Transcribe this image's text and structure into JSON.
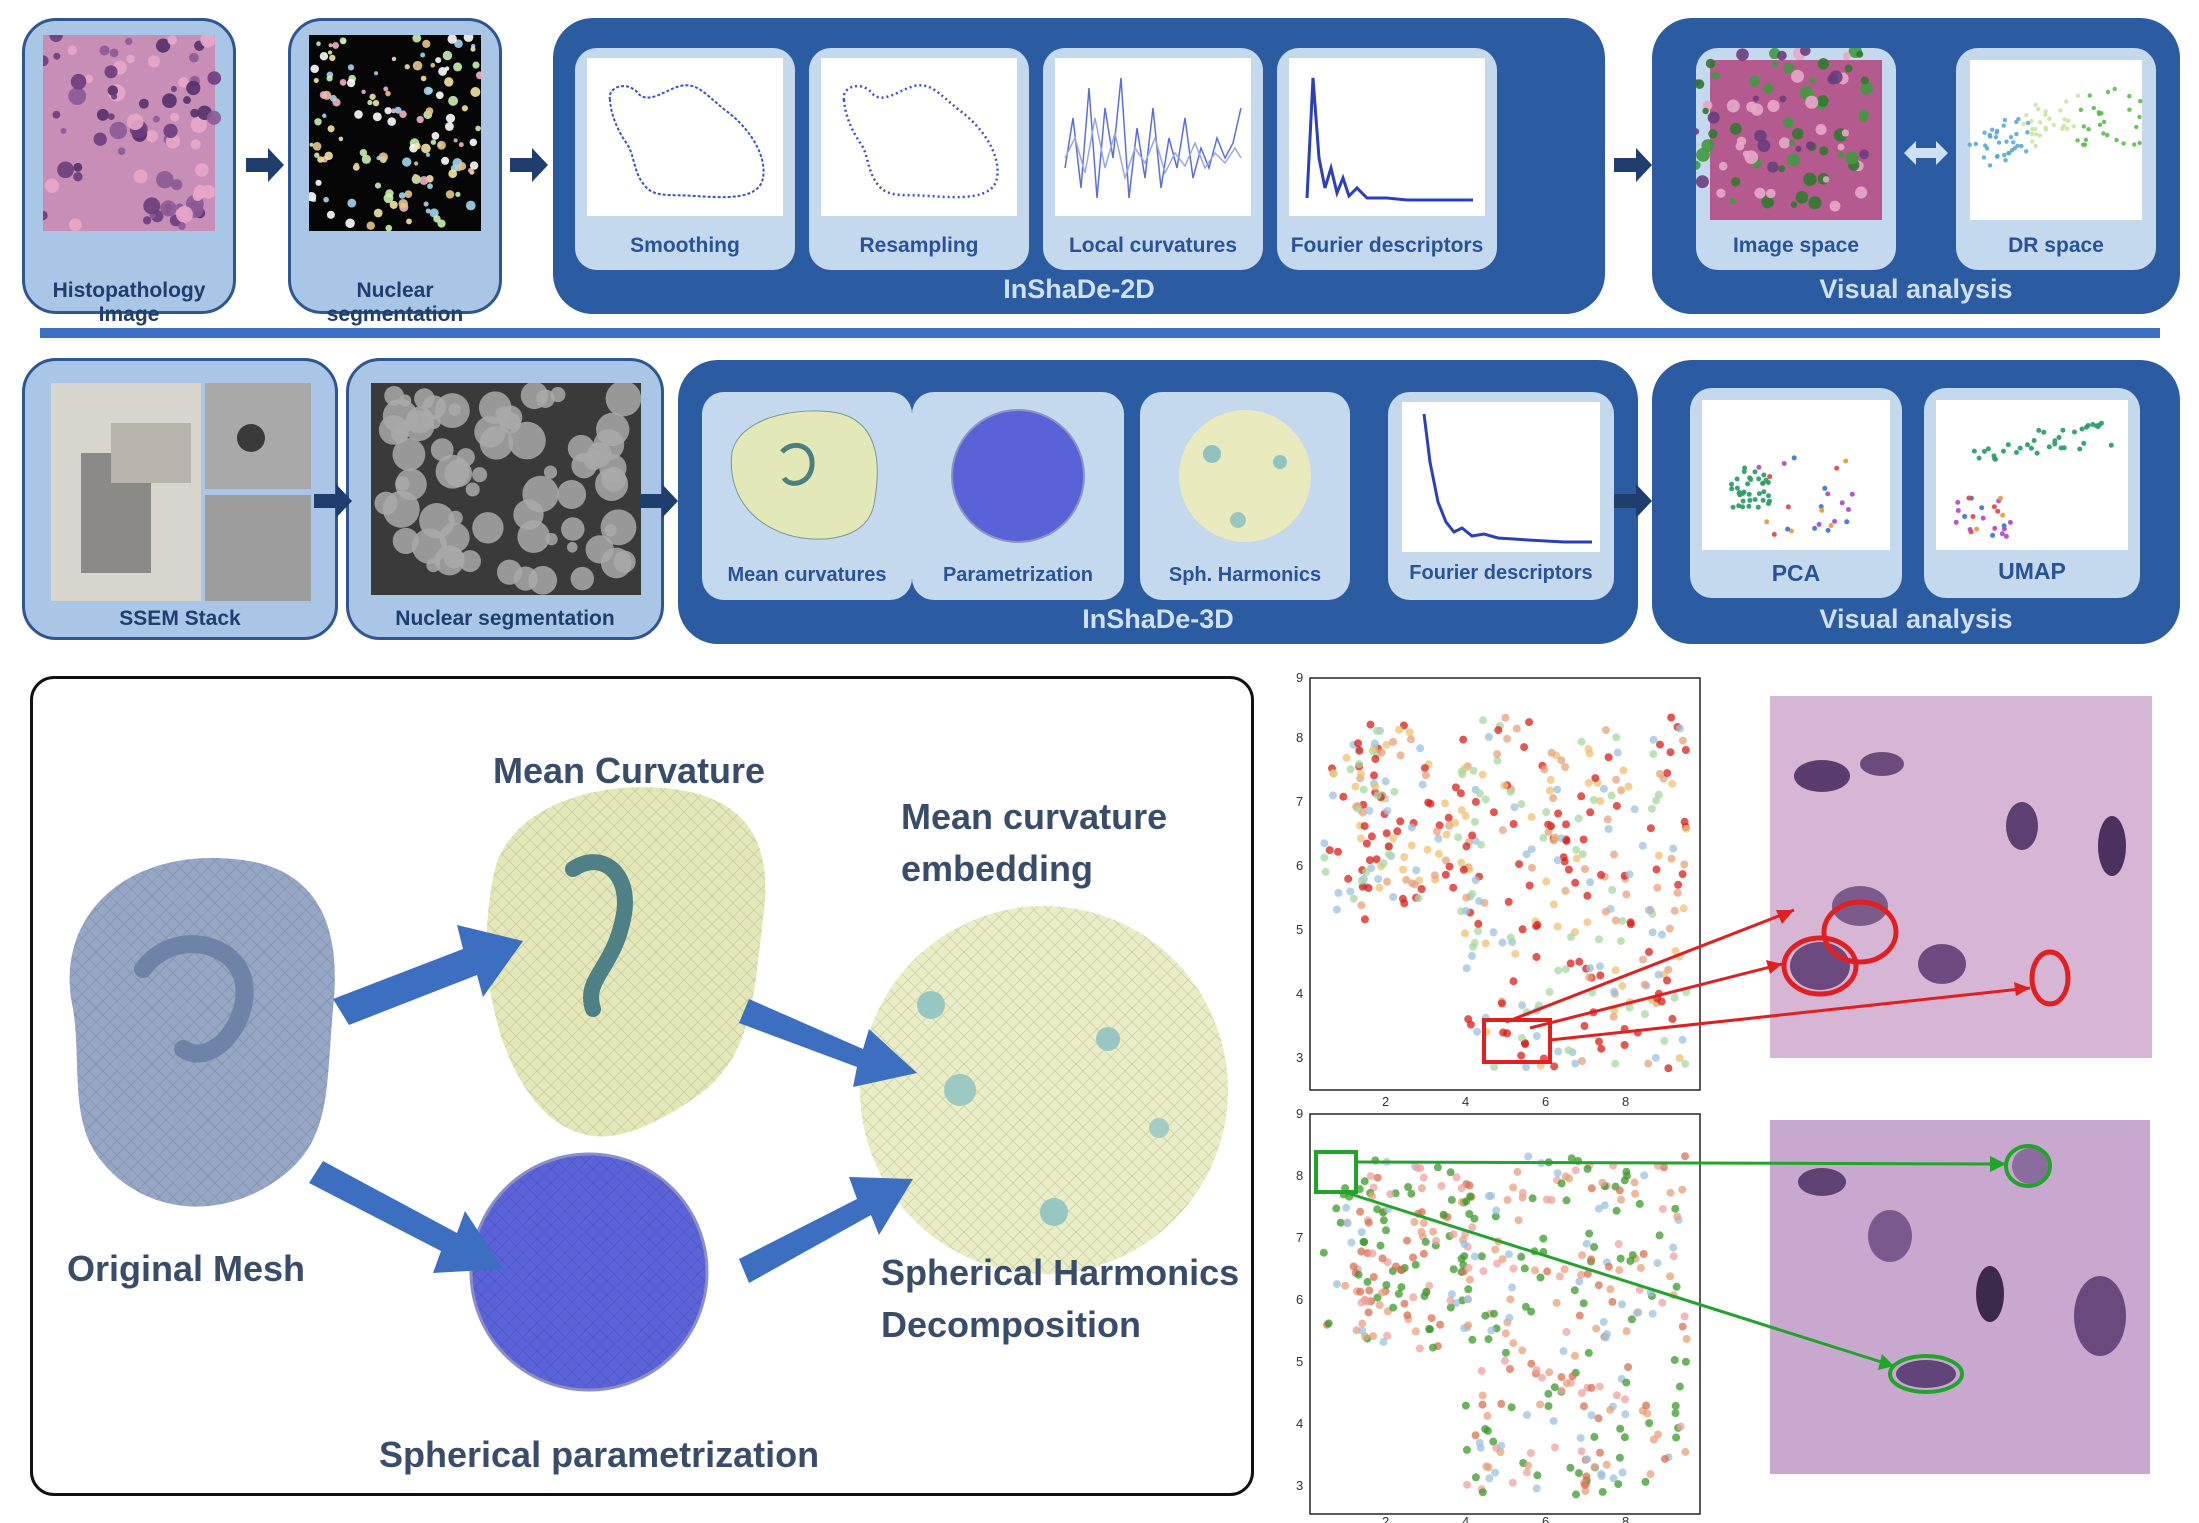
{
  "row1": {
    "histo_label": "Histopathology Image",
    "nucseg_label": "Nuclear segmentation",
    "steps": [
      "Smoothing",
      "Resampling",
      "Local curvatures",
      "Fourier descriptors"
    ],
    "group_label": "InShaDe-2D",
    "visual": {
      "items": [
        "Image space",
        "DR space"
      ],
      "label": "Visual analysis"
    }
  },
  "row2": {
    "ssem_label": "SSEM Stack",
    "nucseg_label": "Nuclear segmentation",
    "steps": [
      "Mean curvatures",
      "Parametrization",
      "Sph. Harmonics",
      "Fourier descriptors"
    ],
    "group_label": "InShaDe-3D",
    "visual": {
      "items": [
        "PCA",
        "UMAP"
      ],
      "label": "Visual analysis"
    }
  },
  "pipeline": {
    "mean_curvature": "Mean Curvature",
    "embedding_line1": "Mean curvature",
    "embedding_line2": "embedding",
    "original_mesh": "Original Mesh",
    "sph_harm_line1": "Spherical Harmonics",
    "sph_harm_line2": "Decomposition",
    "sph_param": "Spherical parametrization"
  },
  "colors": {
    "dark_blue": "#2b5ba0",
    "light_blue": "#a9c6e6",
    "red_highlight": "#e02020",
    "green_highlight": "#22a32a"
  },
  "scatter_top": {
    "xticks": [
      "2",
      "4",
      "6",
      "8"
    ],
    "yticks": [
      "9",
      "8",
      "7",
      "6",
      "5",
      "4",
      "3"
    ]
  },
  "scatter_bottom": {
    "xticks": [
      "2",
      "4",
      "6",
      "8"
    ],
    "yticks": [
      "9",
      "8",
      "7",
      "6",
      "5",
      "4",
      "3"
    ]
  }
}
